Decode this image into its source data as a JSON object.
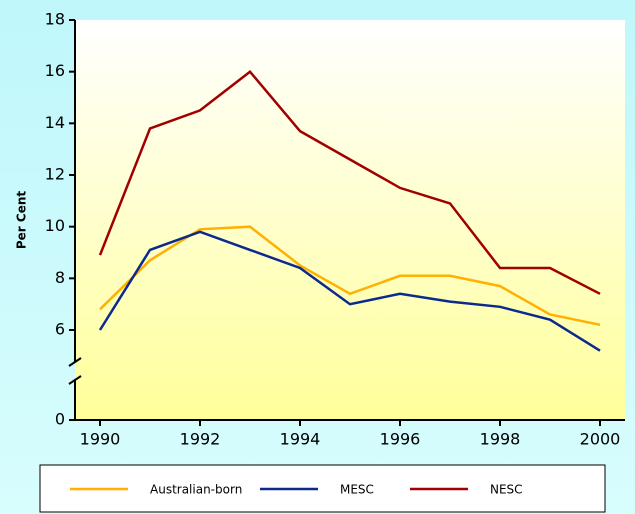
{
  "chart_data": {
    "type": "line",
    "y_label": "Per Cent",
    "x": [
      1990,
      1991,
      1992,
      1993,
      1994,
      1995,
      1996,
      1997,
      1998,
      1999,
      2000
    ],
    "series": [
      {
        "name": "Australian-born",
        "color": "#ffb000",
        "values": [
          6.8,
          8.7,
          9.9,
          10.0,
          8.5,
          7.4,
          8.1,
          8.1,
          7.7,
          6.6,
          6.2
        ]
      },
      {
        "name": "MESC",
        "color": "#0c2a8c",
        "values": [
          6.0,
          9.1,
          9.8,
          9.1,
          8.4,
          7.0,
          7.4,
          7.1,
          6.9,
          6.4,
          5.2
        ]
      },
      {
        "name": "NESC",
        "color": "#a00000",
        "values": [
          8.9,
          13.8,
          14.5,
          16.0,
          13.7,
          12.6,
          11.5,
          10.9,
          8.4,
          8.4,
          7.4
        ]
      }
    ],
    "xlim": [
      1989.5,
      2000.5
    ],
    "xticks": [
      1990,
      1992,
      1994,
      1996,
      1998,
      2000
    ],
    "ylim": [
      0,
      18
    ],
    "yticks": [
      0,
      6,
      8,
      10,
      12,
      14,
      16,
      18
    ],
    "y_axis_break": true
  }
}
